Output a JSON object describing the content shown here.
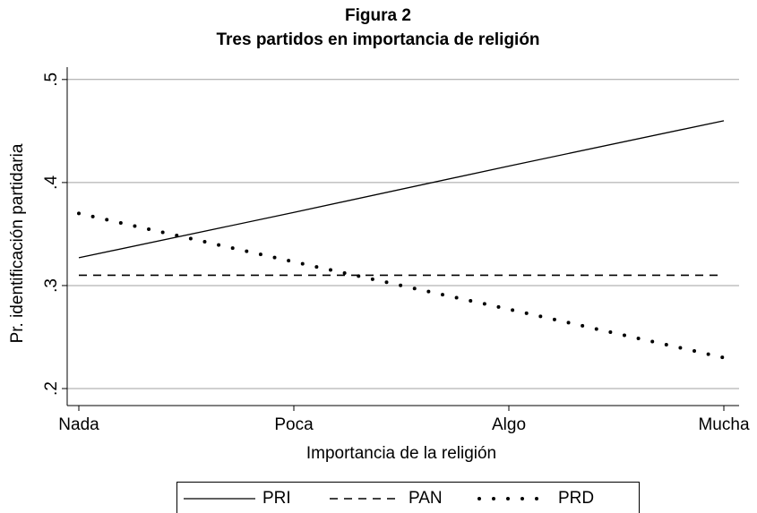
{
  "chart_data": {
    "type": "line",
    "title": "Figura 2",
    "subtitle": "Tres partidos en importancia de religión",
    "x_label": "Importancia de la religión",
    "y_label": "Pr. identificación partidaria",
    "categories": [
      "Nada",
      "Poca",
      "Algo",
      "Mucha"
    ],
    "series": [
      {
        "name": "PRI",
        "color": "#000000",
        "style": "solid",
        "values": [
          0.327,
          0.371,
          0.416,
          0.46
        ]
      },
      {
        "name": "PAN",
        "color": "#000000",
        "style": "dash",
        "values": [
          0.31,
          0.31,
          0.31,
          0.31
        ]
      },
      {
        "name": "PRD",
        "color": "#000000",
        "style": "dot",
        "values": [
          0.37,
          0.323,
          0.277,
          0.23
        ]
      }
    ],
    "ylim": [
      0.1835,
      0.512
    ],
    "yticks": [
      {
        "value": 0.2,
        "label": ".2"
      },
      {
        "value": 0.3,
        "label": ".3"
      },
      {
        "value": 0.4,
        "label": ".4"
      },
      {
        "value": 0.5,
        "label": ".5"
      }
    ],
    "grid": true,
    "legend": "bottom"
  }
}
